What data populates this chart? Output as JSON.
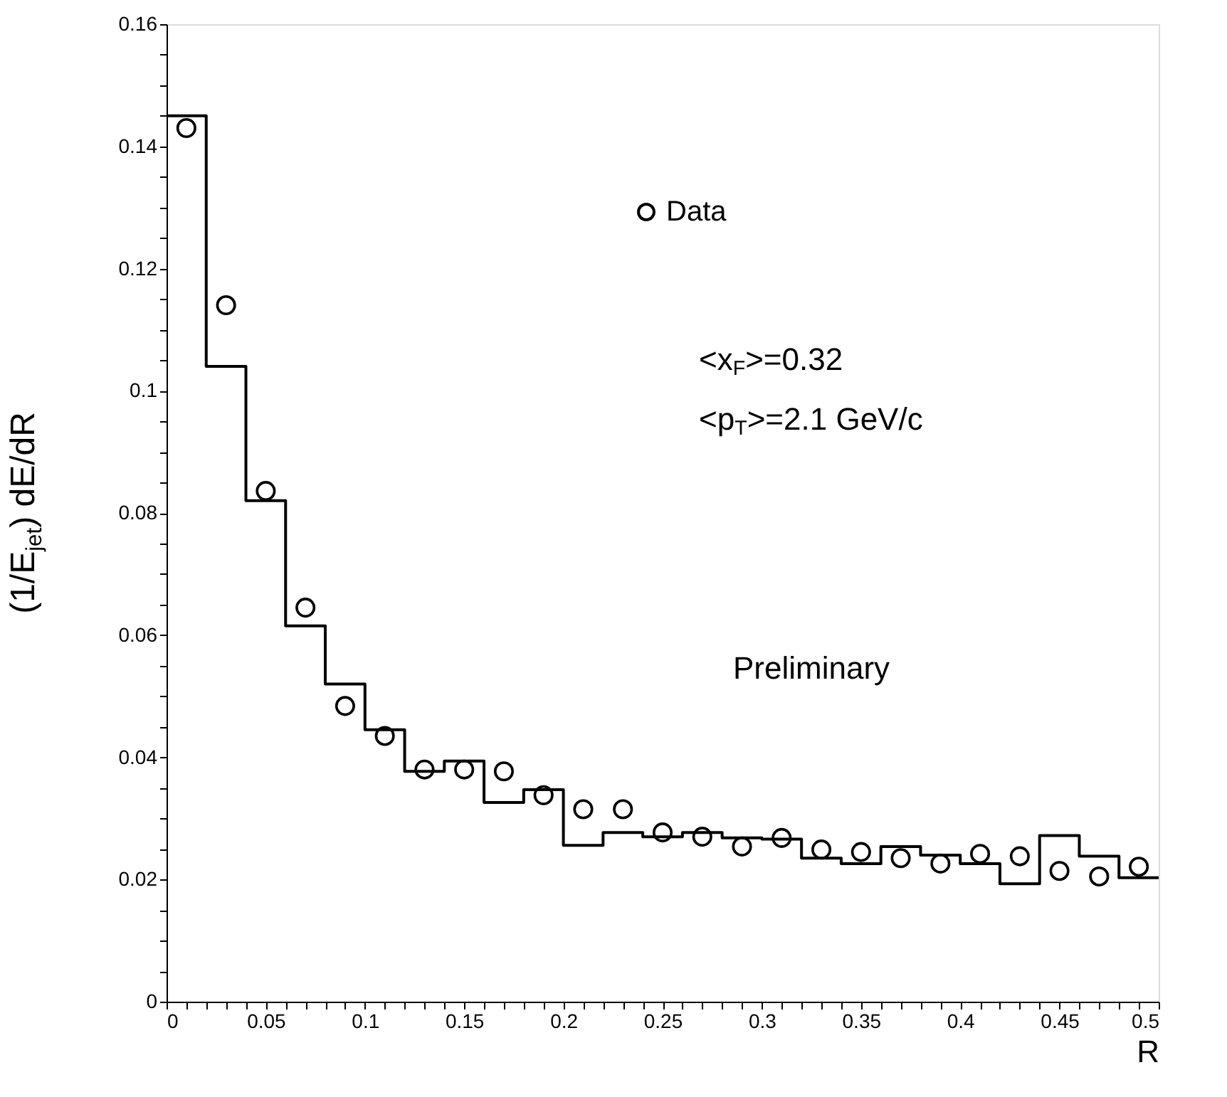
{
  "chart_data": {
    "type": "scatter",
    "xlabel": "R",
    "ylabel": "(1/E$_{jet}$) dE/dR",
    "xlim": [
      0,
      0.5
    ],
    "ylim": [
      0,
      0.16
    ],
    "xticks": [
      0,
      {
        "value": 0.01,
        "label": null
      },
      {
        "value": 0.02,
        "label": null
      },
      {
        "value": 0.03,
        "label": null
      },
      {
        "value": 0.04,
        "label": null
      },
      0.05,
      {
        "value": 0.06,
        "label": null
      },
      {
        "value": 0.07,
        "label": null
      },
      {
        "value": 0.08,
        "label": null
      },
      {
        "value": 0.09,
        "label": null
      },
      0.1,
      {
        "value": 0.11,
        "label": null
      },
      {
        "value": 0.12,
        "label": null
      },
      {
        "value": 0.13,
        "label": null
      },
      {
        "value": 0.14,
        "label": null
      },
      0.15,
      {
        "value": 0.16,
        "label": null
      },
      {
        "value": 0.17,
        "label": null
      },
      {
        "value": 0.18,
        "label": null
      },
      {
        "value": 0.19,
        "label": null
      },
      0.2,
      {
        "value": 0.21,
        "label": null
      },
      {
        "value": 0.22,
        "label": null
      },
      {
        "value": 0.23,
        "label": null
      },
      {
        "value": 0.24,
        "label": null
      },
      0.25,
      {
        "value": 0.26,
        "label": null
      },
      {
        "value": 0.27,
        "label": null
      },
      {
        "value": 0.28,
        "label": null
      },
      {
        "value": 0.29,
        "label": null
      },
      0.3,
      {
        "value": 0.31,
        "label": null
      },
      {
        "value": 0.32,
        "label": null
      },
      {
        "value": 0.33,
        "label": null
      },
      {
        "value": 0.34,
        "label": null
      },
      0.35,
      {
        "value": 0.36,
        "label": null
      },
      {
        "value": 0.37,
        "label": null
      },
      {
        "value": 0.38,
        "label": null
      },
      {
        "value": 0.39,
        "label": null
      },
      0.4,
      {
        "value": 0.41,
        "label": null
      },
      {
        "value": 0.42,
        "label": null
      },
      {
        "value": 0.43,
        "label": null
      },
      {
        "value": 0.44,
        "label": null
      },
      0.45,
      {
        "value": 0.46,
        "label": null
      },
      {
        "value": 0.47,
        "label": null
      },
      {
        "value": 0.48,
        "label": null
      },
      {
        "value": 0.49,
        "label": null
      },
      0.5
    ],
    "yticks": [
      0,
      {
        "value": 0.005,
        "label": null
      },
      {
        "value": 0.01,
        "label": null
      },
      {
        "value": 0.015,
        "label": null
      },
      0.02,
      {
        "value": 0.025,
        "label": null
      },
      {
        "value": 0.03,
        "label": null
      },
      {
        "value": 0.035,
        "label": null
      },
      0.04,
      {
        "value": 0.045,
        "label": null
      },
      {
        "value": 0.05,
        "label": null
      },
      {
        "value": 0.055,
        "label": null
      },
      0.06,
      {
        "value": 0.065,
        "label": null
      },
      {
        "value": 0.07,
        "label": null
      },
      {
        "value": 0.075,
        "label": null
      },
      0.08,
      {
        "value": 0.085,
        "label": null
      },
      {
        "value": 0.09,
        "label": null
      },
      {
        "value": 0.095,
        "label": null
      },
      0.1,
      {
        "value": 0.105,
        "label": null
      },
      {
        "value": 0.11,
        "label": null
      },
      {
        "value": 0.115,
        "label": null
      },
      0.12,
      {
        "value": 0.125,
        "label": null
      },
      {
        "value": 0.13,
        "label": null
      },
      {
        "value": 0.135,
        "label": null
      },
      0.14,
      {
        "value": 0.145,
        "label": null
      },
      {
        "value": 0.15,
        "label": null
      },
      {
        "value": 0.155,
        "label": null
      },
      0.16
    ],
    "legend": "top right",
    "marker": "circle",
    "annotations": [
      "<x$_{F}$>=0.32",
      "<p$_{T}$>=2.1 GeV/c",
      "Preliminary"
    ],
    "series": [
      {
        "name": "Data",
        "type": "scatter",
        "color": "#000000",
        "x": [
          0.01,
          0.03,
          0.05,
          0.07,
          0.09,
          0.11,
          0.13,
          0.15,
          0.17,
          0.19,
          0.21,
          0.23,
          0.25,
          0.27,
          0.29,
          0.31,
          0.33,
          0.35,
          0.37,
          0.39,
          0.41,
          0.43,
          0.45,
          0.47,
          0.49
        ],
        "values": [
          0.143,
          0.114,
          0.0836,
          0.0645,
          0.0484,
          0.0435,
          0.038,
          0.038,
          0.0377,
          0.0338,
          0.0315,
          0.0315,
          0.0277,
          0.027,
          0.0254,
          0.0268,
          0.0249,
          0.0245,
          0.0235,
          0.0226,
          0.0242,
          0.0238,
          0.0214,
          0.0205,
          0.0221
        ]
      },
      {
        "type": "histogram",
        "color": "#000000",
        "bins": [
          0,
          0.02,
          0.04,
          0.06,
          0.08,
          0.1,
          0.12,
          0.14,
          0.16,
          0.18,
          0.2,
          0.22,
          0.24,
          0.26,
          0.28,
          0.3,
          0.32,
          0.34,
          0.36,
          0.38,
          0.4,
          0.42,
          0.44,
          0.46,
          0.48,
          0.5
        ],
        "values": [
          0.145,
          0.104,
          0.082,
          0.0615,
          0.052,
          0.0445,
          0.0377,
          0.0394,
          0.0326,
          0.0347,
          0.0256,
          0.0277,
          0.027,
          0.0277,
          0.0268,
          0.0266,
          0.0235,
          0.0226,
          0.0254,
          0.024,
          0.0226,
          0.0193,
          0.0272,
          0.0238,
          0.0203
        ]
      }
    ]
  }
}
